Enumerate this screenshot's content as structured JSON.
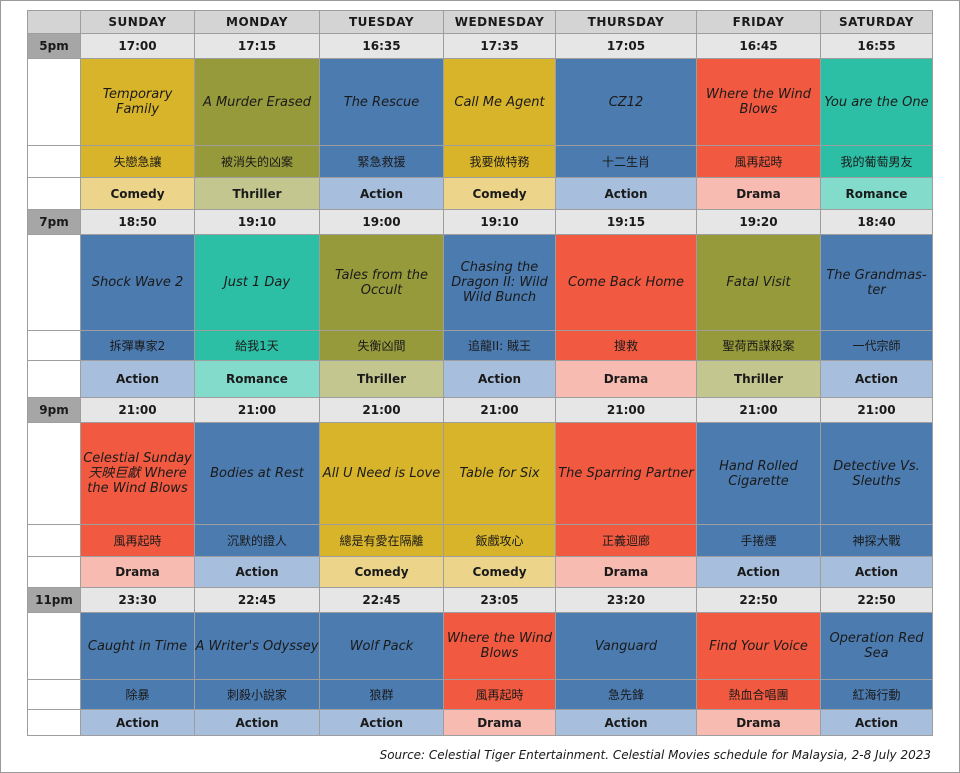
{
  "days": [
    "SUNDAY",
    "MONDAY",
    "TUESDAY",
    "WEDNESDAY",
    "THURSDAY",
    "FRIDAY",
    "SATURDAY"
  ],
  "blocks": [
    {
      "label": "5pm",
      "times": [
        "17:00",
        "17:15",
        "16:35",
        "17:35",
        "17:05",
        "16:45",
        "16:55"
      ],
      "movies": [
        {
          "title": "Temporary Family",
          "chinese": "失戀急讓",
          "genre": "Comedy",
          "color": "yellow"
        },
        {
          "title": "A Murder Erased",
          "chinese": "被消失的凶案",
          "genre": "Thriller",
          "color": "olive"
        },
        {
          "title": "The Rescue",
          "chinese": "緊急救援",
          "genre": "Action",
          "color": "blue"
        },
        {
          "title": "Call Me Agent",
          "chinese": "我要做特務",
          "genre": "Comedy",
          "color": "yellow"
        },
        {
          "title": "CZ12",
          "chinese": "十二生肖",
          "genre": "Action",
          "color": "blue"
        },
        {
          "title": "Where the Wind Blows",
          "chinese": "風再起時",
          "genre": "Drama",
          "color": "red"
        },
        {
          "title": "You are the One",
          "chinese": "我的葡萄男友",
          "genre": "Romance",
          "color": "teal"
        }
      ]
    },
    {
      "label": "7pm",
      "times": [
        "18:50",
        "19:10",
        "19:00",
        "19:10",
        "19:15",
        "19:20",
        "18:40"
      ],
      "movies": [
        {
          "title": "Shock Wave 2",
          "chinese": "拆彈專家2",
          "genre": "Action",
          "color": "blue"
        },
        {
          "title": "Just 1 Day",
          "chinese": "給我1天",
          "genre": "Romance",
          "color": "teal"
        },
        {
          "title": "Tales from the Occult",
          "chinese": "失衡凶間",
          "genre": "Thriller",
          "color": "olive"
        },
        {
          "title": "Chasing the Dragon II: Wild Wild Bunch",
          "chinese": "追龍II: 賊王",
          "genre": "Action",
          "color": "blue"
        },
        {
          "title": "Come Back Home",
          "chinese": "搜救",
          "genre": "Drama",
          "color": "red"
        },
        {
          "title": "Fatal Visit",
          "chinese": "聖荷西謀殺案",
          "genre": "Thriller",
          "color": "olive"
        },
        {
          "title": "The Grandmas-ter",
          "chinese": "一代宗師",
          "genre": "Action",
          "color": "blue"
        }
      ]
    },
    {
      "label": "9pm",
      "times": [
        "21:00",
        "21:00",
        "21:00",
        "21:00",
        "21:00",
        "21:00",
        "21:00"
      ],
      "movies": [
        {
          "title": "Celestial Sunday 天映巨獻 Where the Wind Blows",
          "chinese": "風再起時",
          "genre": "Drama",
          "color": "red"
        },
        {
          "title": "Bodies at Rest",
          "chinese": "沉默的證人",
          "genre": "Action",
          "color": "blue"
        },
        {
          "title": "All U Need is Love",
          "chinese": "總是有愛在隔離",
          "genre": "Comedy",
          "color": "yellow"
        },
        {
          "title": "Table for Six",
          "chinese": "飯戲攻心",
          "genre": "Comedy",
          "color": "yellow"
        },
        {
          "title": "The Sparring Partner",
          "chinese": "正義迴廊",
          "genre": "Drama",
          "color": "red"
        },
        {
          "title": "Hand Rolled Cigarette",
          "chinese": "手捲煙",
          "genre": "Action",
          "color": "blue"
        },
        {
          "title": "Detective Vs. Sleuths",
          "chinese": "神探大戰",
          "genre": "Action",
          "color": "blue"
        }
      ]
    },
    {
      "label": "11pm",
      "times": [
        "23:30",
        "22:45",
        "22:45",
        "23:05",
        "23:20",
        "22:50",
        "22:50"
      ],
      "movies": [
        {
          "title": "Caught in Time",
          "chinese": "除暴",
          "genre": "Action",
          "color": "blue"
        },
        {
          "title": "A Writer's Odyssey",
          "chinese": "刺殺小說家",
          "genre": "Action",
          "color": "blue"
        },
        {
          "title": "Wolf Pack",
          "chinese": "狼群",
          "genre": "Action",
          "color": "blue"
        },
        {
          "title": "Where the Wind Blows",
          "chinese": "風再起時",
          "genre": "Drama",
          "color": "red"
        },
        {
          "title": "Vanguard",
          "chinese": "急先鋒",
          "genre": "Action",
          "color": "blue"
        },
        {
          "title": "Find Your Voice",
          "chinese": "熱血合唱團",
          "genre": "Drama",
          "color": "red"
        },
        {
          "title": "Operation Red Sea",
          "chinese": "紅海行動",
          "genre": "Action",
          "color": "blue"
        }
      ]
    }
  ],
  "source": "Source: Celestial Tiger Entertainment. Celestial Movies schedule for Malaysia, 2-8 July 2023"
}
